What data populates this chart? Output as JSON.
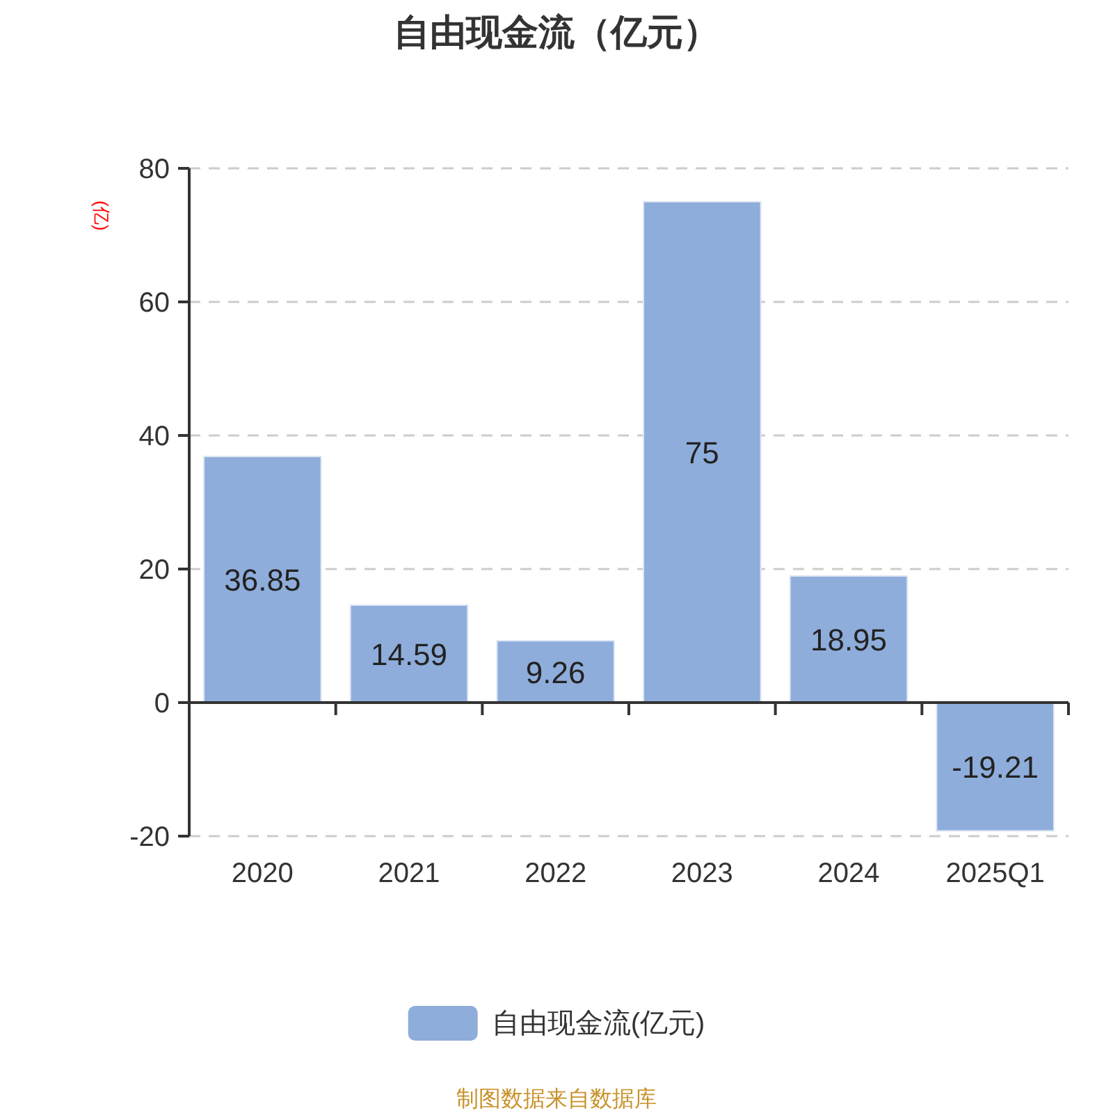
{
  "chart_data": {
    "type": "bar",
    "title": "自由现金流（亿元）",
    "ylabel": "(亿)",
    "categories": [
      "2020",
      "2021",
      "2022",
      "2023",
      "2024",
      "2025Q1"
    ],
    "series": [
      {
        "name": "自由现金流(亿元)",
        "color": "#8eaddb",
        "values": [
          36.85,
          14.59,
          9.26,
          75,
          18.95,
          -19.21
        ]
      }
    ],
    "ylim": [
      -20,
      80
    ],
    "yticks": [
      -20,
      0,
      20,
      40,
      60,
      80
    ],
    "grid": "y",
    "legend": "bottom",
    "data_labels": true,
    "annotations": [
      "制图数据来自数据库"
    ]
  }
}
